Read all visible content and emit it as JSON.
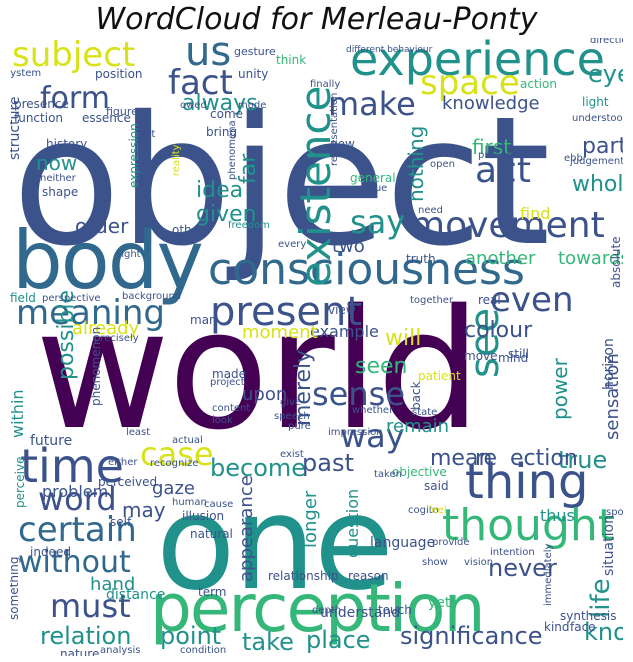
{
  "title": "WordCloud for Merleau-Ponty",
  "palette": {
    "dark_purple": "#440154",
    "indigo": "#3b528b",
    "blue": "#31688e",
    "teal": "#21918c",
    "green": "#35b779",
    "lime": "#90d743",
    "yellow": "#d8e219"
  },
  "words": [
    "object",
    "world",
    "one",
    "body",
    "perception",
    "consciousness",
    "experience",
    "thing",
    "time",
    "thought",
    "present",
    "movement",
    "existence",
    "meaning",
    "subject",
    "us",
    "space",
    "sense",
    "fact",
    "act",
    "make",
    "form",
    "way",
    "certain",
    "without",
    "must",
    "word",
    "case",
    "say",
    "see",
    "even",
    "eye",
    "significance",
    "relation",
    "point",
    "take",
    "place",
    "know",
    "life",
    "never",
    "become",
    "past",
    "true",
    "mean",
    "re",
    "ection",
    "always",
    "knowledge",
    "part",
    "whole",
    "first",
    "nothing",
    "far",
    "idea",
    "given",
    "order",
    "now",
    "possible",
    "will",
    "seen",
    "colour",
    "example",
    "moment",
    "already",
    "upon",
    "merely",
    "power",
    "sensation",
    "another",
    "towards",
    "find",
    "two",
    "remain",
    "thus",
    "appearance",
    "longer",
    "question",
    "hand",
    "may",
    "within",
    "future",
    "gaze",
    "problem",
    "language",
    "relationship",
    "reason",
    "understand",
    "touch",
    "distance",
    "term",
    "situation",
    "horizon",
    "yet",
    "structure",
    "history",
    "system",
    "position",
    "unity",
    "gesture",
    "think",
    "different behaviour",
    "direction",
    "light",
    "action",
    "understood",
    "finally",
    "come",
    "bring",
    "reality",
    "phenomena",
    "expression",
    "general",
    "new",
    "judgement",
    "process",
    "open",
    "value",
    "need",
    "freedom",
    "others",
    "sight",
    "every",
    "truth",
    "field",
    "perspective",
    "background",
    "man",
    "precisely",
    "view",
    "real",
    "patient",
    "still",
    "mind",
    "move",
    "made",
    "project",
    "content",
    "look",
    "give",
    "speech",
    "pure",
    "actual",
    "exist",
    "state",
    "objective",
    "said",
    "taken",
    "cogito",
    "feel",
    "either",
    "perceive",
    "recognize",
    "perceived",
    "indeed",
    "self",
    "human",
    "illusion",
    "natural",
    "cause",
    "provide",
    "intention",
    "vision",
    "show",
    "depth",
    "synthesis",
    "immediately",
    "kind",
    "face",
    "something",
    "nature",
    "analysis",
    "condition",
    "absolute",
    "figure",
    "presence",
    "function",
    "essence",
    "set",
    "neither",
    "shape",
    "whether",
    "back",
    "impression",
    "least",
    "ebb",
    "together",
    "phenomenon",
    "spoke",
    "owed",
    "mode",
    "representation"
  ]
}
